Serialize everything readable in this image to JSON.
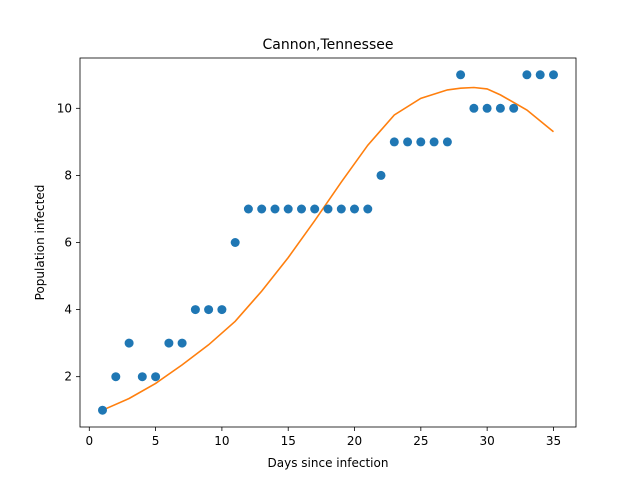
{
  "chart_data": {
    "type": "scatter",
    "title": "Cannon,Tennessee",
    "xlabel": "Days since infection",
    "ylabel": "Population infected",
    "xlim": [
      -0.7,
      36.7
    ],
    "ylim": [
      0.5,
      11.5
    ],
    "x_ticks": [
      0,
      5,
      10,
      15,
      20,
      25,
      30,
      35
    ],
    "y_ticks": [
      2,
      4,
      6,
      8,
      10
    ],
    "grid": false,
    "colors": {
      "points": "#1f77b4",
      "fit": "#ff7f0e"
    },
    "series": [
      {
        "kind": "scatter",
        "x": [
          1,
          2,
          3,
          4,
          5,
          6,
          7,
          8,
          9,
          10,
          11,
          12,
          13,
          14,
          15,
          16,
          17,
          18,
          19,
          20,
          21,
          22,
          23,
          24,
          25,
          26,
          27,
          28,
          29,
          30,
          31,
          32,
          33,
          34,
          35
        ],
        "y": [
          1,
          2,
          3,
          2,
          2,
          3,
          3,
          4,
          4,
          4,
          6,
          7,
          7,
          7,
          7,
          7,
          7,
          7,
          7,
          7,
          7,
          8,
          9,
          9,
          9,
          9,
          9,
          11,
          10,
          10,
          10,
          10,
          11,
          11,
          11
        ]
      },
      {
        "kind": "line",
        "x": [
          1,
          3,
          5,
          7,
          9,
          11,
          13,
          15,
          17,
          19,
          21,
          23,
          25,
          27,
          28,
          29,
          30,
          31,
          33,
          35
        ],
        "y": [
          1.0,
          1.35,
          1.8,
          2.35,
          2.95,
          3.65,
          4.55,
          5.55,
          6.65,
          7.8,
          8.9,
          9.8,
          10.3,
          10.55,
          10.6,
          10.62,
          10.58,
          10.4,
          9.95,
          9.3
        ]
      }
    ]
  }
}
